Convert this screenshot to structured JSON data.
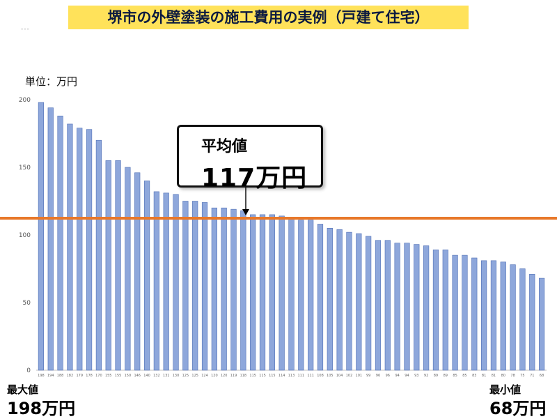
{
  "title": "堺市の外壁塗装の施工費用の実例（戸建て住宅）",
  "corner_marks": "---",
  "unit_label": "単位：万円",
  "average": {
    "label": "平均値",
    "value_text": "117万円",
    "value": 117
  },
  "max": {
    "label": "最大値",
    "value_text": "198万円"
  },
  "min": {
    "label": "最小値",
    "value_text": "68万円"
  },
  "colors": {
    "bar": "#8ea7db",
    "bar_edge": "#4f6fb5",
    "average_line": "#e8782a",
    "title_bg": "#ffe25a"
  },
  "chart_data": {
    "type": "bar",
    "title": "堺市の外壁塗装の施工費用の実例（戸建て住宅）",
    "ylabel": "単位：万円",
    "ylim": [
      0,
      200
    ],
    "yticks": [
      0,
      50,
      100,
      150,
      200
    ],
    "grid": false,
    "categories": [
      "198",
      "194",
      "188",
      "182",
      "179",
      "178",
      "170",
      "155",
      "155",
      "150",
      "146",
      "140",
      "132",
      "131",
      "130",
      "125",
      "125",
      "124",
      "120",
      "120",
      "119",
      "118",
      "115",
      "115",
      "115",
      "114",
      "113",
      "111",
      "111",
      "108",
      "105",
      "104",
      "102",
      "101",
      "99",
      "96",
      "96",
      "94",
      "94",
      "93",
      "92",
      "89",
      "89",
      "85",
      "85",
      "83",
      "81",
      "81",
      "80",
      "78",
      "75",
      "71",
      "68"
    ],
    "values": [
      198,
      194,
      188,
      182,
      179,
      178,
      170,
      155,
      155,
      150,
      146,
      140,
      132,
      131,
      130,
      125,
      125,
      124,
      120,
      120,
      119,
      118,
      115,
      115,
      115,
      114,
      113,
      111,
      111,
      108,
      105,
      104,
      102,
      101,
      99,
      96,
      96,
      94,
      94,
      93,
      92,
      89,
      89,
      85,
      85,
      83,
      81,
      81,
      80,
      78,
      75,
      71,
      68
    ],
    "reference_line": {
      "label": "平均値",
      "value": 117
    }
  }
}
